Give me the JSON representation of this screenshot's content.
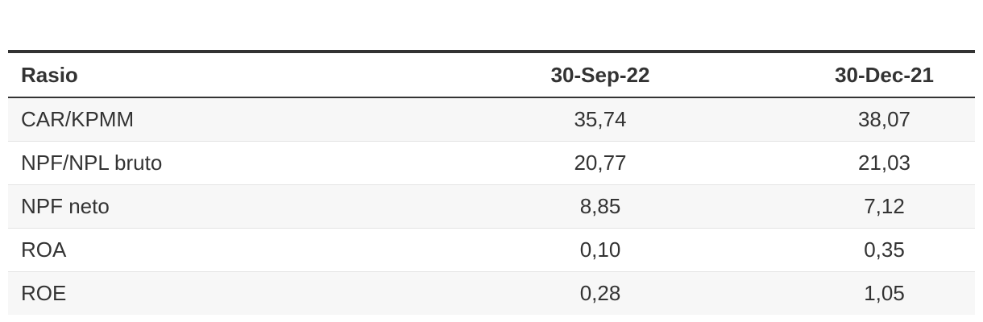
{
  "table": {
    "header": [
      "Rasio",
      "30-Sep-22",
      "30-Dec-21"
    ],
    "rows": [
      [
        "CAR/KPMM",
        "35,74",
        "38,07"
      ],
      [
        "NPF/NPL bruto",
        "20,77",
        "21,03"
      ],
      [
        "NPF neto",
        "8,85",
        "7,12"
      ],
      [
        "ROA",
        "0,10",
        "0,35"
      ],
      [
        "ROE",
        "0,28",
        "1,05"
      ]
    ]
  }
}
